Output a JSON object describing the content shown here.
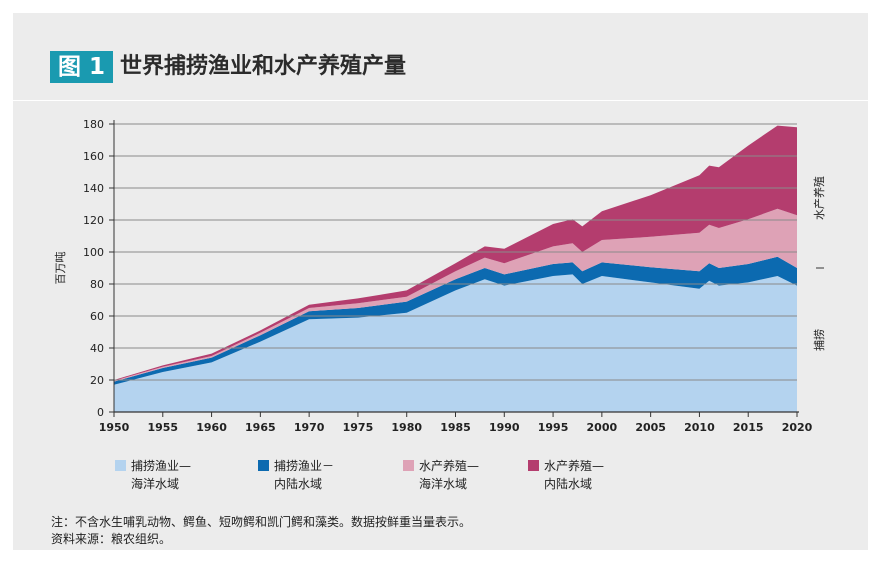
{
  "figure": {
    "label": "图 1",
    "title": "世界捕捞渔业和水产养殖产量"
  },
  "notes": {
    "note": "注：不含水生哺乳动物、鳄鱼、短吻鳄和凯门鳄和藻类。数据按鲜重当量表示。",
    "source": "资料来源：粮农组织。"
  },
  "chart_data": {
    "type": "area",
    "stacked": true,
    "ylabel": "百万吨",
    "ylim": [
      0,
      180
    ],
    "yticks": [
      "0",
      "20",
      "40",
      "60",
      "80",
      "100",
      "120",
      "140",
      "160",
      "180"
    ],
    "xlim": [
      1950,
      2020
    ],
    "xticks": [
      "1950",
      "1955",
      "1960",
      "1965",
      "1970",
      "1975",
      "1980",
      "1985",
      "1990",
      "1995",
      "2000",
      "2005",
      "2010",
      "2015",
      "2020"
    ],
    "grid": "horizontal",
    "right_labels": {
      "aquaculture": "水产养殖",
      "capture": "捕捞"
    },
    "colors": {
      "capture_marine": "#b4d3ef",
      "capture_inland": "#0c6ab0",
      "aqua_marine": "#dea2b6",
      "aqua_inland": "#b43d6e",
      "axis": "#333333",
      "grid": "#8a8a8a"
    },
    "x": [
      1950,
      1955,
      1960,
      1965,
      1970,
      1975,
      1980,
      1985,
      1988,
      1990,
      1995,
      1997,
      1998,
      2000,
      2005,
      2010,
      2011,
      2012,
      2015,
      2018,
      2020
    ],
    "series": [
      {
        "key": "capture_marine",
        "name": "捕捞渔业—海洋水域",
        "values": [
          17,
          25,
          31,
          44,
          58,
          59,
          62,
          76,
          83,
          79,
          85,
          86,
          80,
          85,
          81,
          77,
          82,
          79,
          81,
          85,
          79
        ]
      },
      {
        "key": "capture_inland",
        "name": "捕捞渔业－内陆水域",
        "values": [
          2,
          2.5,
          3,
          4,
          5,
          6,
          7,
          7,
          7,
          7,
          7.5,
          7.5,
          8,
          8.5,
          9.5,
          11,
          11,
          11,
          11.5,
          12,
          11
        ]
      },
      {
        "key": "aqua_marine",
        "name": "水产养殖—海洋水域",
        "values": [
          0.5,
          0.8,
          1,
          1.5,
          2,
          3,
          3,
          5,
          6.5,
          7,
          11,
          12,
          12,
          14,
          19,
          24,
          24,
          25,
          28,
          30,
          33
        ]
      },
      {
        "key": "aqua_inland",
        "name": "水产养殖—内陆水域",
        "values": [
          0.5,
          0.8,
          1.5,
          1.5,
          2,
          3,
          4,
          5,
          7,
          9,
          14,
          15,
          16,
          18,
          26,
          36,
          37,
          38,
          46,
          52,
          55
        ]
      }
    ]
  }
}
